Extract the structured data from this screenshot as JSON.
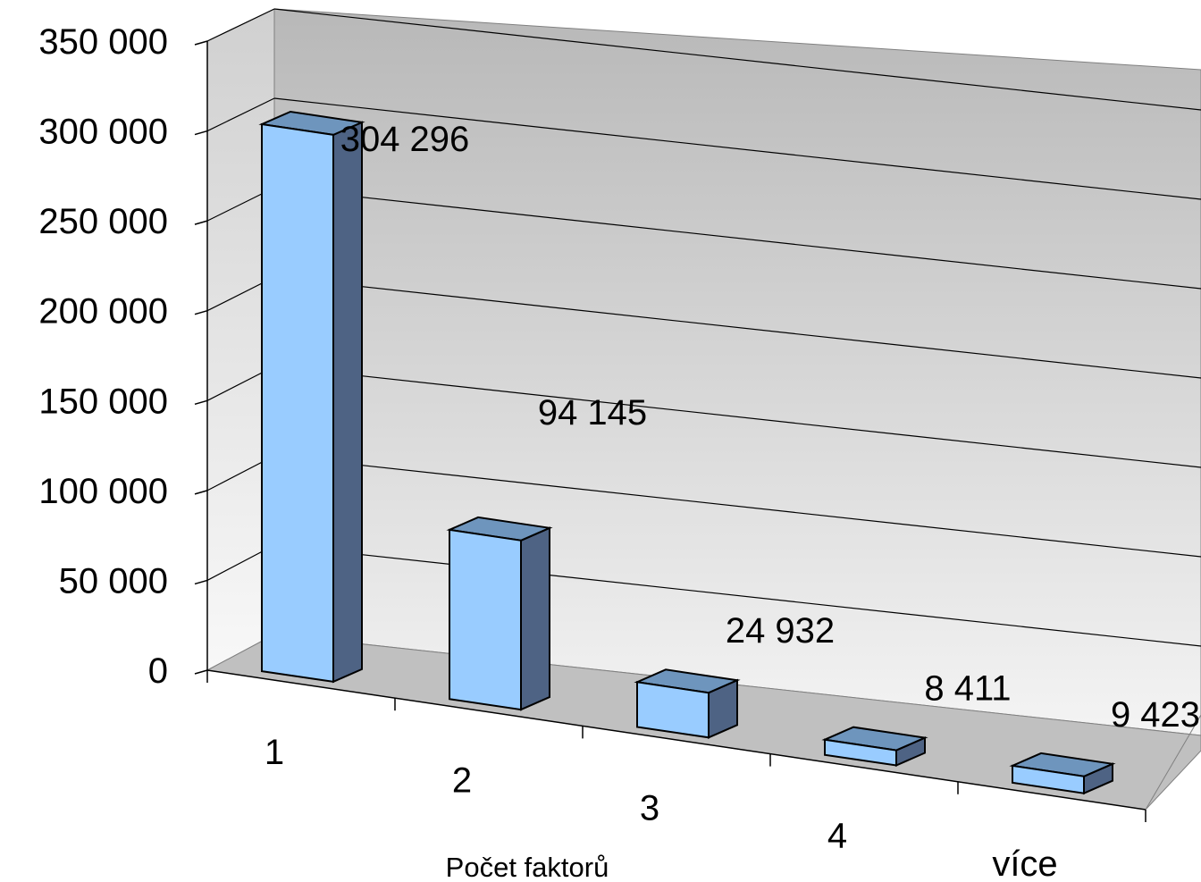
{
  "chart_data": {
    "type": "bar",
    "categories": [
      "1",
      "2",
      "3",
      "4",
      "více"
    ],
    "values": [
      304296,
      94145,
      24932,
      8411,
      9423
    ],
    "value_labels": [
      "304 296",
      "94 145",
      "24 932",
      "8 411",
      "9 423"
    ],
    "title": "",
    "xlabel": "Počet faktorů",
    "ylabel": "",
    "ylim": [
      0,
      350000
    ],
    "yticks": [
      0,
      50000,
      100000,
      150000,
      200000,
      250000,
      300000,
      350000
    ],
    "ytick_labels": [
      "0",
      "50 000",
      "100 000",
      "150 000",
      "200 000",
      "250 000",
      "300 000",
      "350 000"
    ],
    "grid": true,
    "style": "3d",
    "legend": "none"
  },
  "colors": {
    "bar_front": "#99ccff",
    "bar_top": "#6e95bd",
    "bar_side": "#4e6384",
    "wall_top": "#b8b8b8",
    "wall_bottom": "#f4f4f4",
    "floor": "#c0c0c0",
    "grid_line": "#000000"
  }
}
